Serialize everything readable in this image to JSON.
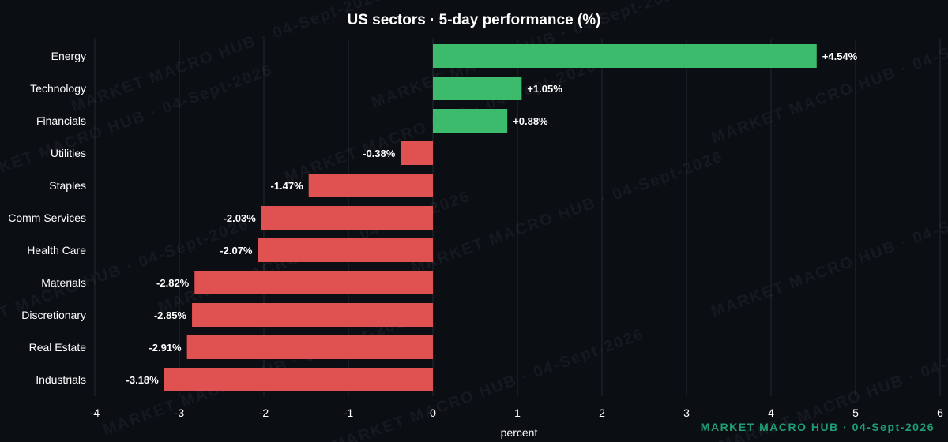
{
  "colors": {
    "background": "#0b0e13",
    "positive": "#3dbb6c",
    "negative": "#e05252",
    "text": "#ffffff",
    "gridline": "#232933",
    "watermark": "#8a93a3",
    "footer": "#1f9e74"
  },
  "watermark": {
    "text": "MARKET MACRO HUB · 04-Sept-2026"
  },
  "footer": {
    "text": "MARKET MACRO HUB · 04-Sept-2026"
  },
  "chart_data": {
    "type": "bar",
    "orientation": "horizontal",
    "title": "US sectors · 5-day performance (%)",
    "xlabel": "percent",
    "ylabel": "",
    "xlim": [
      -4,
      6
    ],
    "xticks": [
      -4,
      -3,
      -2,
      -1,
      0,
      1,
      2,
      3,
      4,
      5,
      6
    ],
    "grid": true,
    "categories": [
      "Energy",
      "Technology",
      "Financials",
      "Utilities",
      "Staples",
      "Comm Services",
      "Health Care",
      "Materials",
      "Discretionary",
      "Real Estate",
      "Industrials"
    ],
    "values": [
      4.54,
      1.05,
      0.88,
      -0.38,
      -1.47,
      -2.03,
      -2.07,
      -2.82,
      -2.85,
      -2.91,
      -3.18
    ],
    "data_labels": [
      "+4.54%",
      "+1.05%",
      "+0.88%",
      "-0.38%",
      "-1.47%",
      "-2.03%",
      "-2.07%",
      "-2.82%",
      "-2.85%",
      "-2.91%",
      "-3.18%"
    ]
  }
}
